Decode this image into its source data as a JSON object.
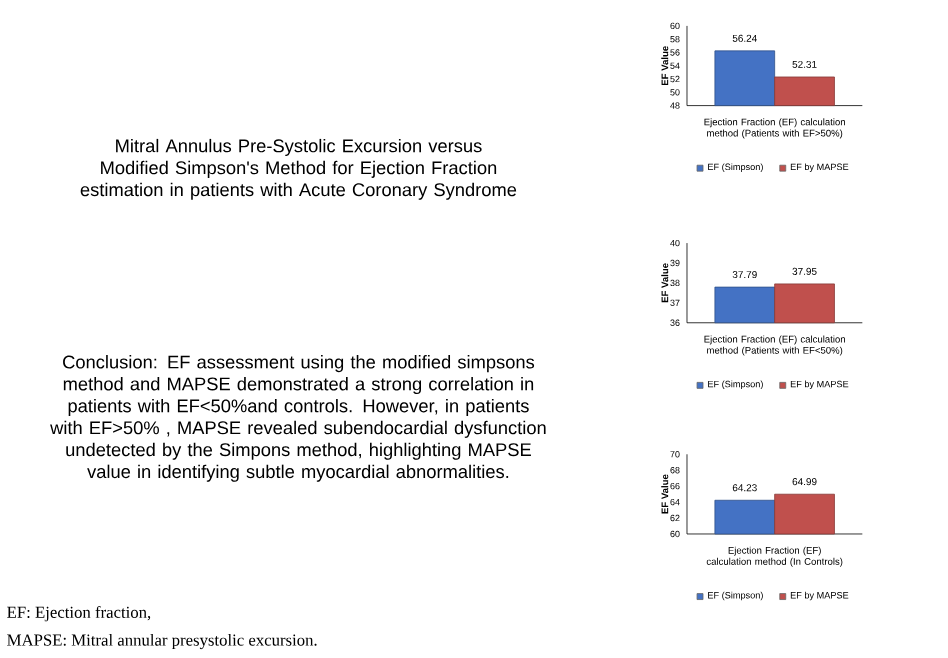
{
  "chart_data": [
    {
      "type": "other",
      "title": "Mitral Annulus Pre-Systolic Excursion versus Modified Simpson's Method for Ejection Fraction estimation in patients with Acute Coronary Syndrome",
      "annotations": [
        "Conclusion: EF assessment using the modified simpsons method and MAPSE demonstrated a strong correlation in patients with EF<50%and controls. However, in patients with EF>50% , MAPSE revealed subendocardial dysfunction  undetected by the Simpons method, highlighting MAPSE value in identifying subtle myocardial abnormalities.",
        "EF: Ejection fraction,",
        "MAPSE: Mitral annular presystolic excursion."
      ]
    },
    {
      "type": "bar",
      "categories": [
        null
      ],
      "xlabel": "Ejection Fraction (EF) calculation method (Patients with EF>50%)",
      "ylabel": "EF Value",
      "ylim": [
        48,
        60
      ],
      "yticks": [
        48,
        50,
        52,
        54,
        56,
        58,
        60
      ],
      "data_labels": true,
      "legend": "bottom",
      "series": [
        {
          "name": "EF (Simpson)",
          "color": "#4472c4",
          "values": [
            56.24
          ]
        },
        {
          "name": "EF by MAPSE",
          "color": "#c0504d",
          "values": [
            52.31
          ]
        }
      ]
    },
    {
      "type": "bar",
      "categories": [
        null
      ],
      "xlabel": "Ejection Fraction (EF) calculation method (Patients with EF<50%)",
      "ylabel": "EF Value",
      "ylim": [
        36,
        40
      ],
      "yticks": [
        36,
        37,
        38,
        39,
        40
      ],
      "data_labels": true,
      "legend": "bottom",
      "series": [
        {
          "name": "EF (Simpson)",
          "color": "#4472c4",
          "values": [
            37.79
          ]
        },
        {
          "name": "EF by MAPSE",
          "color": "#c0504d",
          "values": [
            37.95
          ]
        }
      ]
    },
    {
      "type": "bar",
      "categories": [
        null
      ],
      "xlabel": "Ejection Fraction (EF) calculation method (In Controls)",
      "ylabel": "EF Value",
      "ylim": [
        60,
        70
      ],
      "yticks": [
        60,
        62,
        64,
        66,
        68,
        70
      ],
      "data_labels": true,
      "legend": "bottom",
      "series": [
        {
          "name": "EF (Simpson)",
          "color": "#4472c4",
          "values": [
            64.23
          ]
        },
        {
          "name": "EF by MAPSE",
          "color": "#c0504d",
          "values": [
            64.99
          ]
        }
      ]
    }
  ]
}
